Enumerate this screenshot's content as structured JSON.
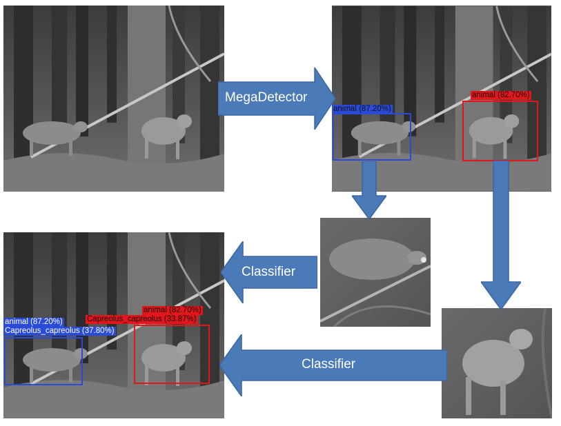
{
  "steps": {
    "detector": "MegaDetector",
    "classifier_top": "Classifier",
    "classifier_bottom": "Classifier"
  },
  "detections": {
    "blue": {
      "label": "animal (87.20%)",
      "species": "Capreolus_capreolus (37.80%)"
    },
    "red": {
      "label": "animal (82.70%)",
      "species": "Capreolus_capreolus (33.87%)"
    }
  },
  "colors": {
    "arrow_fill": "#4a7ab8",
    "arrow_stroke": "#3a66a2",
    "blue_box": "#2a4bd7",
    "red_box": "#e3161b"
  }
}
